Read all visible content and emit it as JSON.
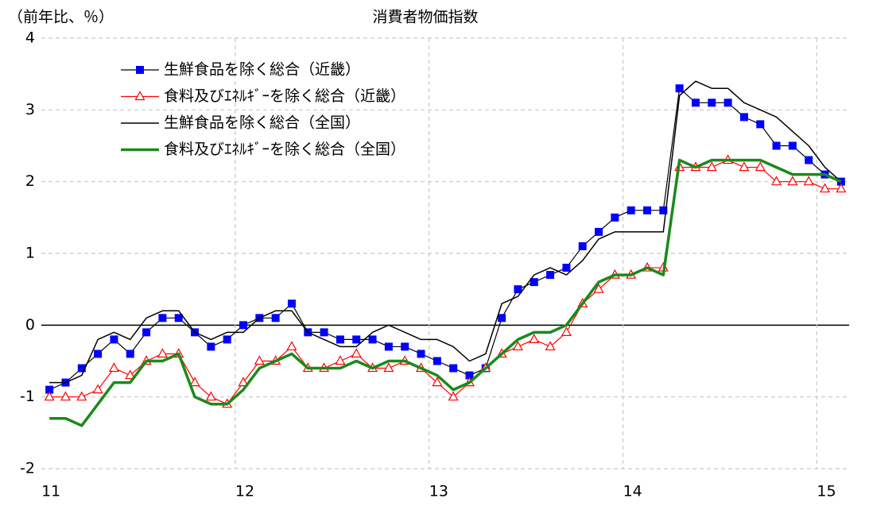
{
  "chart_data": {
    "type": "line",
    "title": "消費者物価指数",
    "y_axis_label": "（前年比、％）",
    "categories": [
      "11",
      null,
      null,
      null,
      null,
      null,
      null,
      null,
      null,
      null,
      null,
      null,
      "12",
      null,
      null,
      null,
      null,
      null,
      null,
      null,
      null,
      null,
      null,
      null,
      "13",
      null,
      null,
      null,
      null,
      null,
      null,
      null,
      null,
      null,
      null,
      null,
      "14",
      null,
      null,
      null,
      null,
      null,
      null,
      null,
      null,
      null,
      null,
      null,
      "15",
      null
    ],
    "ylim": [
      -2,
      4
    ],
    "yticks": [
      -2,
      -1,
      0,
      1,
      2,
      3,
      4
    ],
    "grid": true,
    "legend": "upper left",
    "series": [
      {
        "name": "生鮮食品を除く総合（近畿）",
        "color": "#0000ff",
        "line_color": "#000000",
        "marker": "square",
        "line_width": 1.2,
        "values": [
          -0.9,
          -0.8,
          -0.6,
          -0.4,
          -0.2,
          -0.4,
          -0.1,
          0.1,
          0.1,
          -0.1,
          -0.3,
          -0.2,
          0.0,
          0.1,
          0.1,
          0.3,
          -0.1,
          -0.1,
          -0.2,
          -0.2,
          -0.2,
          -0.3,
          -0.3,
          -0.4,
          -0.5,
          -0.6,
          -0.7,
          -0.6,
          0.1,
          0.5,
          0.6,
          0.7,
          0.8,
          1.1,
          1.3,
          1.5,
          1.6,
          1.6,
          1.6,
          3.3,
          3.1,
          3.1,
          3.1,
          2.9,
          2.8,
          2.5,
          2.5,
          2.3,
          2.1,
          2.0
        ]
      },
      {
        "name": "食料及びｴﾈﾙｷﾞｰを除く総合（近畿）",
        "color": "#ff0000",
        "line_color": "#ff0000",
        "marker": "triangle",
        "line_width": 1.2,
        "values": [
          -1.0,
          -1.0,
          -1.0,
          -0.9,
          -0.6,
          -0.7,
          -0.5,
          -0.4,
          -0.4,
          -0.8,
          -1.0,
          -1.1,
          -0.8,
          -0.5,
          -0.5,
          -0.3,
          -0.6,
          -0.6,
          -0.5,
          -0.4,
          -0.6,
          -0.6,
          -0.5,
          -0.6,
          -0.8,
          -1.0,
          -0.8,
          -0.6,
          -0.4,
          -0.3,
          -0.2,
          -0.3,
          -0.1,
          0.3,
          0.5,
          0.7,
          0.7,
          0.8,
          0.8,
          2.2,
          2.2,
          2.2,
          2.3,
          2.2,
          2.2,
          2.0,
          2.0,
          2.0,
          1.9,
          1.9
        ]
      },
      {
        "name": "生鮮食品を除く総合（全国）",
        "color": "#000000",
        "line_color": "#000000",
        "marker": "none",
        "line_width": 1.5,
        "values": [
          -0.8,
          -0.8,
          -0.7,
          -0.2,
          -0.1,
          -0.2,
          0.1,
          0.2,
          0.2,
          -0.1,
          -0.2,
          -0.1,
          -0.1,
          0.1,
          0.2,
          0.2,
          -0.1,
          -0.2,
          -0.3,
          -0.3,
          -0.1,
          0.0,
          -0.1,
          -0.2,
          -0.2,
          -0.3,
          -0.5,
          -0.4,
          0.3,
          0.4,
          0.7,
          0.8,
          0.7,
          0.9,
          1.2,
          1.3,
          1.3,
          1.3,
          1.3,
          3.2,
          3.4,
          3.3,
          3.3,
          3.1,
          3.0,
          2.9,
          2.7,
          2.5,
          2.2,
          2.0
        ]
      },
      {
        "name": "食料及びｴﾈﾙｷﾞｰを除く総合（全国）",
        "color": "#1a8a1a",
        "line_color": "#1a8a1a",
        "marker": "none",
        "line_width": 3.5,
        "values": [
          -1.3,
          -1.3,
          -1.4,
          -1.1,
          -0.8,
          -0.8,
          -0.5,
          -0.5,
          -0.4,
          -1.0,
          -1.1,
          -1.1,
          -0.9,
          -0.6,
          -0.5,
          -0.4,
          -0.6,
          -0.6,
          -0.6,
          -0.5,
          -0.6,
          -0.5,
          -0.5,
          -0.6,
          -0.7,
          -0.9,
          -0.8,
          -0.6,
          -0.4,
          -0.2,
          -0.1,
          -0.1,
          0.0,
          0.3,
          0.6,
          0.7,
          0.7,
          0.8,
          0.7,
          2.3,
          2.2,
          2.3,
          2.3,
          2.3,
          2.3,
          2.2,
          2.1,
          2.1,
          2.1,
          2.0
        ]
      }
    ]
  }
}
